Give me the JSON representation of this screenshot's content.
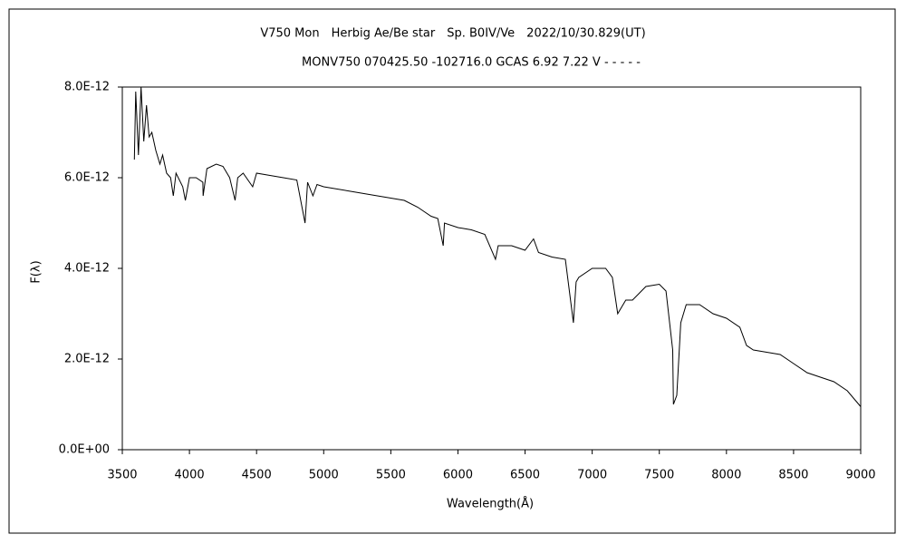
{
  "chart_data": {
    "type": "line",
    "title": "V750 Mon　Herbig Ae/Be star　Sp. B0IV/Ve　2022/10/30.829(UT)",
    "subtitle": "MONV750 070425.50 -102716.0 GCAS 6.92 7.22 V - - - - -",
    "xlabel": "Wavelength(Å)",
    "ylabel": "F(λ)",
    "xlim": [
      3500,
      9000
    ],
    "xticks": [
      3500,
      4000,
      4500,
      5000,
      5500,
      6000,
      6500,
      7000,
      7500,
      8000,
      8500,
      9000
    ],
    "ylim": [
      0,
      8e-12
    ],
    "yticks": [
      {
        "value": 0,
        "label": "0.0E+00"
      },
      {
        "value": 2e-12,
        "label": "2.0E-12"
      },
      {
        "value": 4e-12,
        "label": "4.0E-12"
      },
      {
        "value": 6e-12,
        "label": "6.0E-12"
      },
      {
        "value": 8e-12,
        "label": "8.0E-12"
      }
    ],
    "grid": false,
    "series": [
      {
        "color": "#000000",
        "x": [
          3590,
          3600,
          3620,
          3640,
          3660,
          3680,
          3700,
          3720,
          3750,
          3780,
          3800,
          3830,
          3860,
          3880,
          3900,
          3950,
          3970,
          4000,
          4050,
          4100,
          4102,
          4130,
          4200,
          4250,
          4300,
          4340,
          4360,
          4400,
          4471,
          4500,
          4600,
          4700,
          4800,
          4861,
          4880,
          4920,
          4950,
          5000,
          5200,
          5400,
          5500,
          5600,
          5700,
          5800,
          5850,
          5890,
          5900,
          6000,
          6100,
          6200,
          6280,
          6300,
          6400,
          6500,
          6563,
          6600,
          6700,
          6800,
          6860,
          6880,
          6900,
          7000,
          7100,
          7150,
          7190,
          7250,
          7300,
          7400,
          7500,
          7550,
          7600,
          7605,
          7630,
          7660,
          7700,
          7800,
          7900,
          8000,
          8100,
          8150,
          8200,
          8300,
          8400,
          8500,
          8600,
          8700,
          8800,
          8900,
          9000
        ],
        "values": [
          6.4e-12,
          7.9e-12,
          6.5e-12,
          8e-12,
          6.8e-12,
          7.6e-12,
          6.9e-12,
          7e-12,
          6.6e-12,
          6.3e-12,
          6.5e-12,
          6.1e-12,
          6e-12,
          5.6e-12,
          6.1e-12,
          5.8e-12,
          5.5e-12,
          6e-12,
          6e-12,
          5.9e-12,
          5.6e-12,
          6.2e-12,
          6.3e-12,
          6.25e-12,
          6e-12,
          5.5e-12,
          6e-12,
          6.1e-12,
          5.8e-12,
          6.1e-12,
          6.05e-12,
          6e-12,
          5.95e-12,
          5e-12,
          5.9e-12,
          5.6e-12,
          5.85e-12,
          5.8e-12,
          5.7e-12,
          5.6e-12,
          5.55e-12,
          5.5e-12,
          5.35e-12,
          5.15e-12,
          5.1e-12,
          4.5e-12,
          5e-12,
          4.9e-12,
          4.85e-12,
          4.75e-12,
          4.2e-12,
          4.5e-12,
          4.5e-12,
          4.4e-12,
          4.65e-12,
          4.35e-12,
          4.25e-12,
          4.2e-12,
          2.8e-12,
          3.7e-12,
          3.8e-12,
          4e-12,
          4e-12,
          3.8e-12,
          3e-12,
          3.3e-12,
          3.3e-12,
          3.6e-12,
          3.65e-12,
          3.5e-12,
          2.2e-12,
          1e-12,
          1.2e-12,
          2.8e-12,
          3.2e-12,
          3.2e-12,
          3e-12,
          2.9e-12,
          2.7e-12,
          2.3e-12,
          2.2e-12,
          2.15e-12,
          2.1e-12,
          1.9e-12,
          1.7e-12,
          1.6e-12,
          1.5e-12,
          1.3e-12,
          9.5e-13
        ]
      }
    ]
  }
}
